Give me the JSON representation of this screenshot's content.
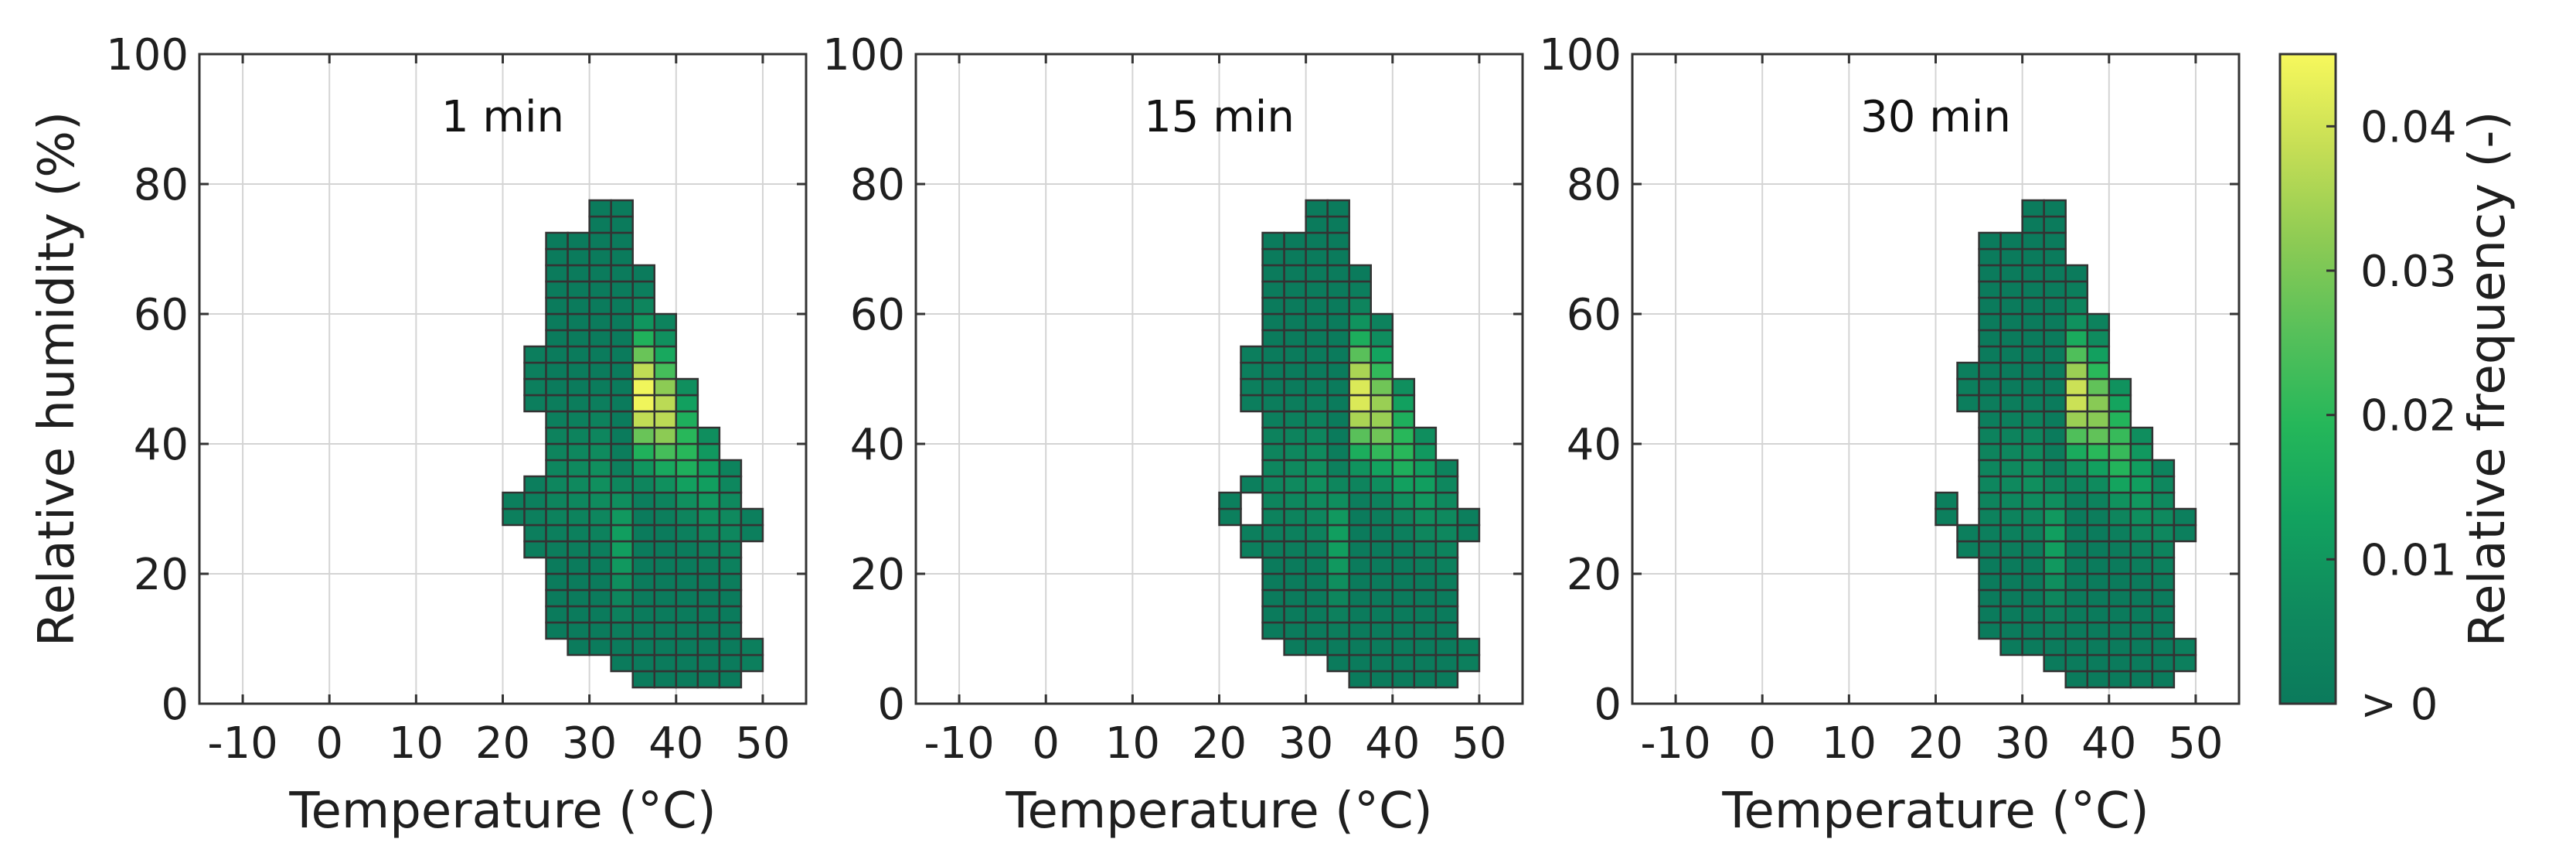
{
  "chart_data": {
    "type": "heatmap",
    "shared": {
      "xlabel": "Temperature (°C)",
      "ylabel": "Relative humidity (%)",
      "xlim": [
        -15,
        55
      ],
      "ylim": [
        0,
        100
      ],
      "xticks": [
        -10,
        0,
        10,
        20,
        30,
        40,
        50
      ],
      "yticks": [
        0,
        20,
        40,
        60,
        80,
        100
      ],
      "grid": true,
      "bin_width_temperature": 2.5,
      "bin_height_humidity": 2.5
    },
    "colorbar": {
      "label": "Relative frequency (-)",
      "ticks": [
        0,
        0.01,
        0.02,
        0.03,
        0.04
      ],
      "tick_labels": [
        "> 0",
        "0.01",
        "0.02",
        "0.03",
        "0.04"
      ],
      "range": [
        0,
        0.045
      ],
      "colors": [
        "#0b7a5c",
        "#0f8a5e",
        "#12a25f",
        "#25b75a",
        "#57c05a",
        "#8ecb54",
        "#c6de55",
        "#f7f85c"
      ]
    },
    "panels": [
      {
        "title": "1 min",
        "columns": [
          {
            "t": 21.25,
            "rh_min": 27.5,
            "rh_max": 32.5,
            "peak_rh": 30,
            "peak": 0.002
          },
          {
            "t": 23.75,
            "rh_min": 22.5,
            "rh_max": 35,
            "peak_rh": 30,
            "peak": 0.002
          },
          {
            "t": 23.75,
            "rh_min": 45,
            "rh_max": 55,
            "peak_rh": 50,
            "peak": 0.002
          },
          {
            "t": 26.25,
            "rh_min": 10,
            "rh_max": 72.5,
            "peak_rh": 35,
            "peak": 0.005
          },
          {
            "t": 28.75,
            "rh_min": 7.5,
            "rh_max": 72.5,
            "peak_rh": 35,
            "peak": 0.006
          },
          {
            "t": 31.25,
            "rh_min": 7.5,
            "rh_max": 77.5,
            "peak_rh": 35,
            "peak": 0.008
          },
          {
            "t": 33.75,
            "rh_min": 5,
            "rh_max": 77.5,
            "peak_rh": 25,
            "peak": 0.012
          },
          {
            "t": 36.25,
            "rh_min": 2.5,
            "rh_max": 67.5,
            "peak_rh": 47.5,
            "peak": 0.045
          },
          {
            "t": 38.75,
            "rh_min": 2.5,
            "rh_max": 60,
            "peak_rh": 45,
            "peak": 0.038
          },
          {
            "t": 41.25,
            "rh_min": 2.5,
            "rh_max": 50,
            "peak_rh": 40,
            "peak": 0.02
          },
          {
            "t": 43.75,
            "rh_min": 2.5,
            "rh_max": 42.5,
            "peak_rh": 35,
            "peak": 0.012
          },
          {
            "t": 46.25,
            "rh_min": 2.5,
            "rh_max": 37.5,
            "peak_rh": 30,
            "peak": 0.006
          },
          {
            "t": 48.75,
            "rh_min": 5,
            "rh_max": 10,
            "peak_rh": 7.5,
            "peak": 0.002
          },
          {
            "t": 48.75,
            "rh_min": 25,
            "rh_max": 30,
            "peak_rh": 27.5,
            "peak": 0.002
          }
        ]
      },
      {
        "title": "15 min",
        "columns": [
          {
            "t": 21.25,
            "rh_min": 27.5,
            "rh_max": 32.5,
            "peak_rh": 30,
            "peak": 0.002
          },
          {
            "t": 23.75,
            "rh_min": 22.5,
            "rh_max": 27.5,
            "peak_rh": 25,
            "peak": 0.002
          },
          {
            "t": 23.75,
            "rh_min": 32.5,
            "rh_max": 35,
            "peak_rh": 33.75,
            "peak": 0.002
          },
          {
            "t": 23.75,
            "rh_min": 45,
            "rh_max": 55,
            "peak_rh": 50,
            "peak": 0.002
          },
          {
            "t": 26.25,
            "rh_min": 10,
            "rh_max": 72.5,
            "peak_rh": 35,
            "peak": 0.005
          },
          {
            "t": 28.75,
            "rh_min": 7.5,
            "rh_max": 72.5,
            "peak_rh": 35,
            "peak": 0.006
          },
          {
            "t": 31.25,
            "rh_min": 7.5,
            "rh_max": 77.5,
            "peak_rh": 35,
            "peak": 0.008
          },
          {
            "t": 33.75,
            "rh_min": 5,
            "rh_max": 77.5,
            "peak_rh": 25,
            "peak": 0.012
          },
          {
            "t": 36.25,
            "rh_min": 2.5,
            "rh_max": 67.5,
            "peak_rh": 47.5,
            "peak": 0.042
          },
          {
            "t": 38.75,
            "rh_min": 2.5,
            "rh_max": 60,
            "peak_rh": 45,
            "peak": 0.034
          },
          {
            "t": 41.25,
            "rh_min": 2.5,
            "rh_max": 50,
            "peak_rh": 40,
            "peak": 0.02
          },
          {
            "t": 43.75,
            "rh_min": 2.5,
            "rh_max": 42.5,
            "peak_rh": 35,
            "peak": 0.012
          },
          {
            "t": 46.25,
            "rh_min": 2.5,
            "rh_max": 37.5,
            "peak_rh": 30,
            "peak": 0.006
          },
          {
            "t": 48.75,
            "rh_min": 5,
            "rh_max": 10,
            "peak_rh": 7.5,
            "peak": 0.002
          },
          {
            "t": 48.75,
            "rh_min": 25,
            "rh_max": 30,
            "peak_rh": 27.5,
            "peak": 0.002
          }
        ]
      },
      {
        "title": "30 min",
        "columns": [
          {
            "t": 21.25,
            "rh_min": 27.5,
            "rh_max": 32.5,
            "peak_rh": 30,
            "peak": 0.002
          },
          {
            "t": 23.75,
            "rh_min": 22.5,
            "rh_max": 27.5,
            "peak_rh": 25,
            "peak": 0.002
          },
          {
            "t": 23.75,
            "rh_min": 45,
            "rh_max": 52.5,
            "peak_rh": 50,
            "peak": 0.002
          },
          {
            "t": 26.25,
            "rh_min": 10,
            "rh_max": 72.5,
            "peak_rh": 35,
            "peak": 0.005
          },
          {
            "t": 28.75,
            "rh_min": 7.5,
            "rh_max": 72.5,
            "peak_rh": 35,
            "peak": 0.006
          },
          {
            "t": 31.25,
            "rh_min": 7.5,
            "rh_max": 77.5,
            "peak_rh": 35,
            "peak": 0.008
          },
          {
            "t": 33.75,
            "rh_min": 5,
            "rh_max": 77.5,
            "peak_rh": 25,
            "peak": 0.012
          },
          {
            "t": 36.25,
            "rh_min": 2.5,
            "rh_max": 67.5,
            "peak_rh": 47.5,
            "peak": 0.04
          },
          {
            "t": 38.75,
            "rh_min": 2.5,
            "rh_max": 60,
            "peak_rh": 45,
            "peak": 0.032
          },
          {
            "t": 41.25,
            "rh_min": 2.5,
            "rh_max": 50,
            "peak_rh": 40,
            "peak": 0.022
          },
          {
            "t": 43.75,
            "rh_min": 2.5,
            "rh_max": 42.5,
            "peak_rh": 35,
            "peak": 0.012
          },
          {
            "t": 46.25,
            "rh_min": 2.5,
            "rh_max": 37.5,
            "peak_rh": 30,
            "peak": 0.006
          },
          {
            "t": 48.75,
            "rh_min": 5,
            "rh_max": 10,
            "peak_rh": 7.5,
            "peak": 0.002
          },
          {
            "t": 48.75,
            "rh_min": 25,
            "rh_max": 30,
            "peak_rh": 27.5,
            "peak": 0.002
          }
        ]
      }
    ]
  }
}
